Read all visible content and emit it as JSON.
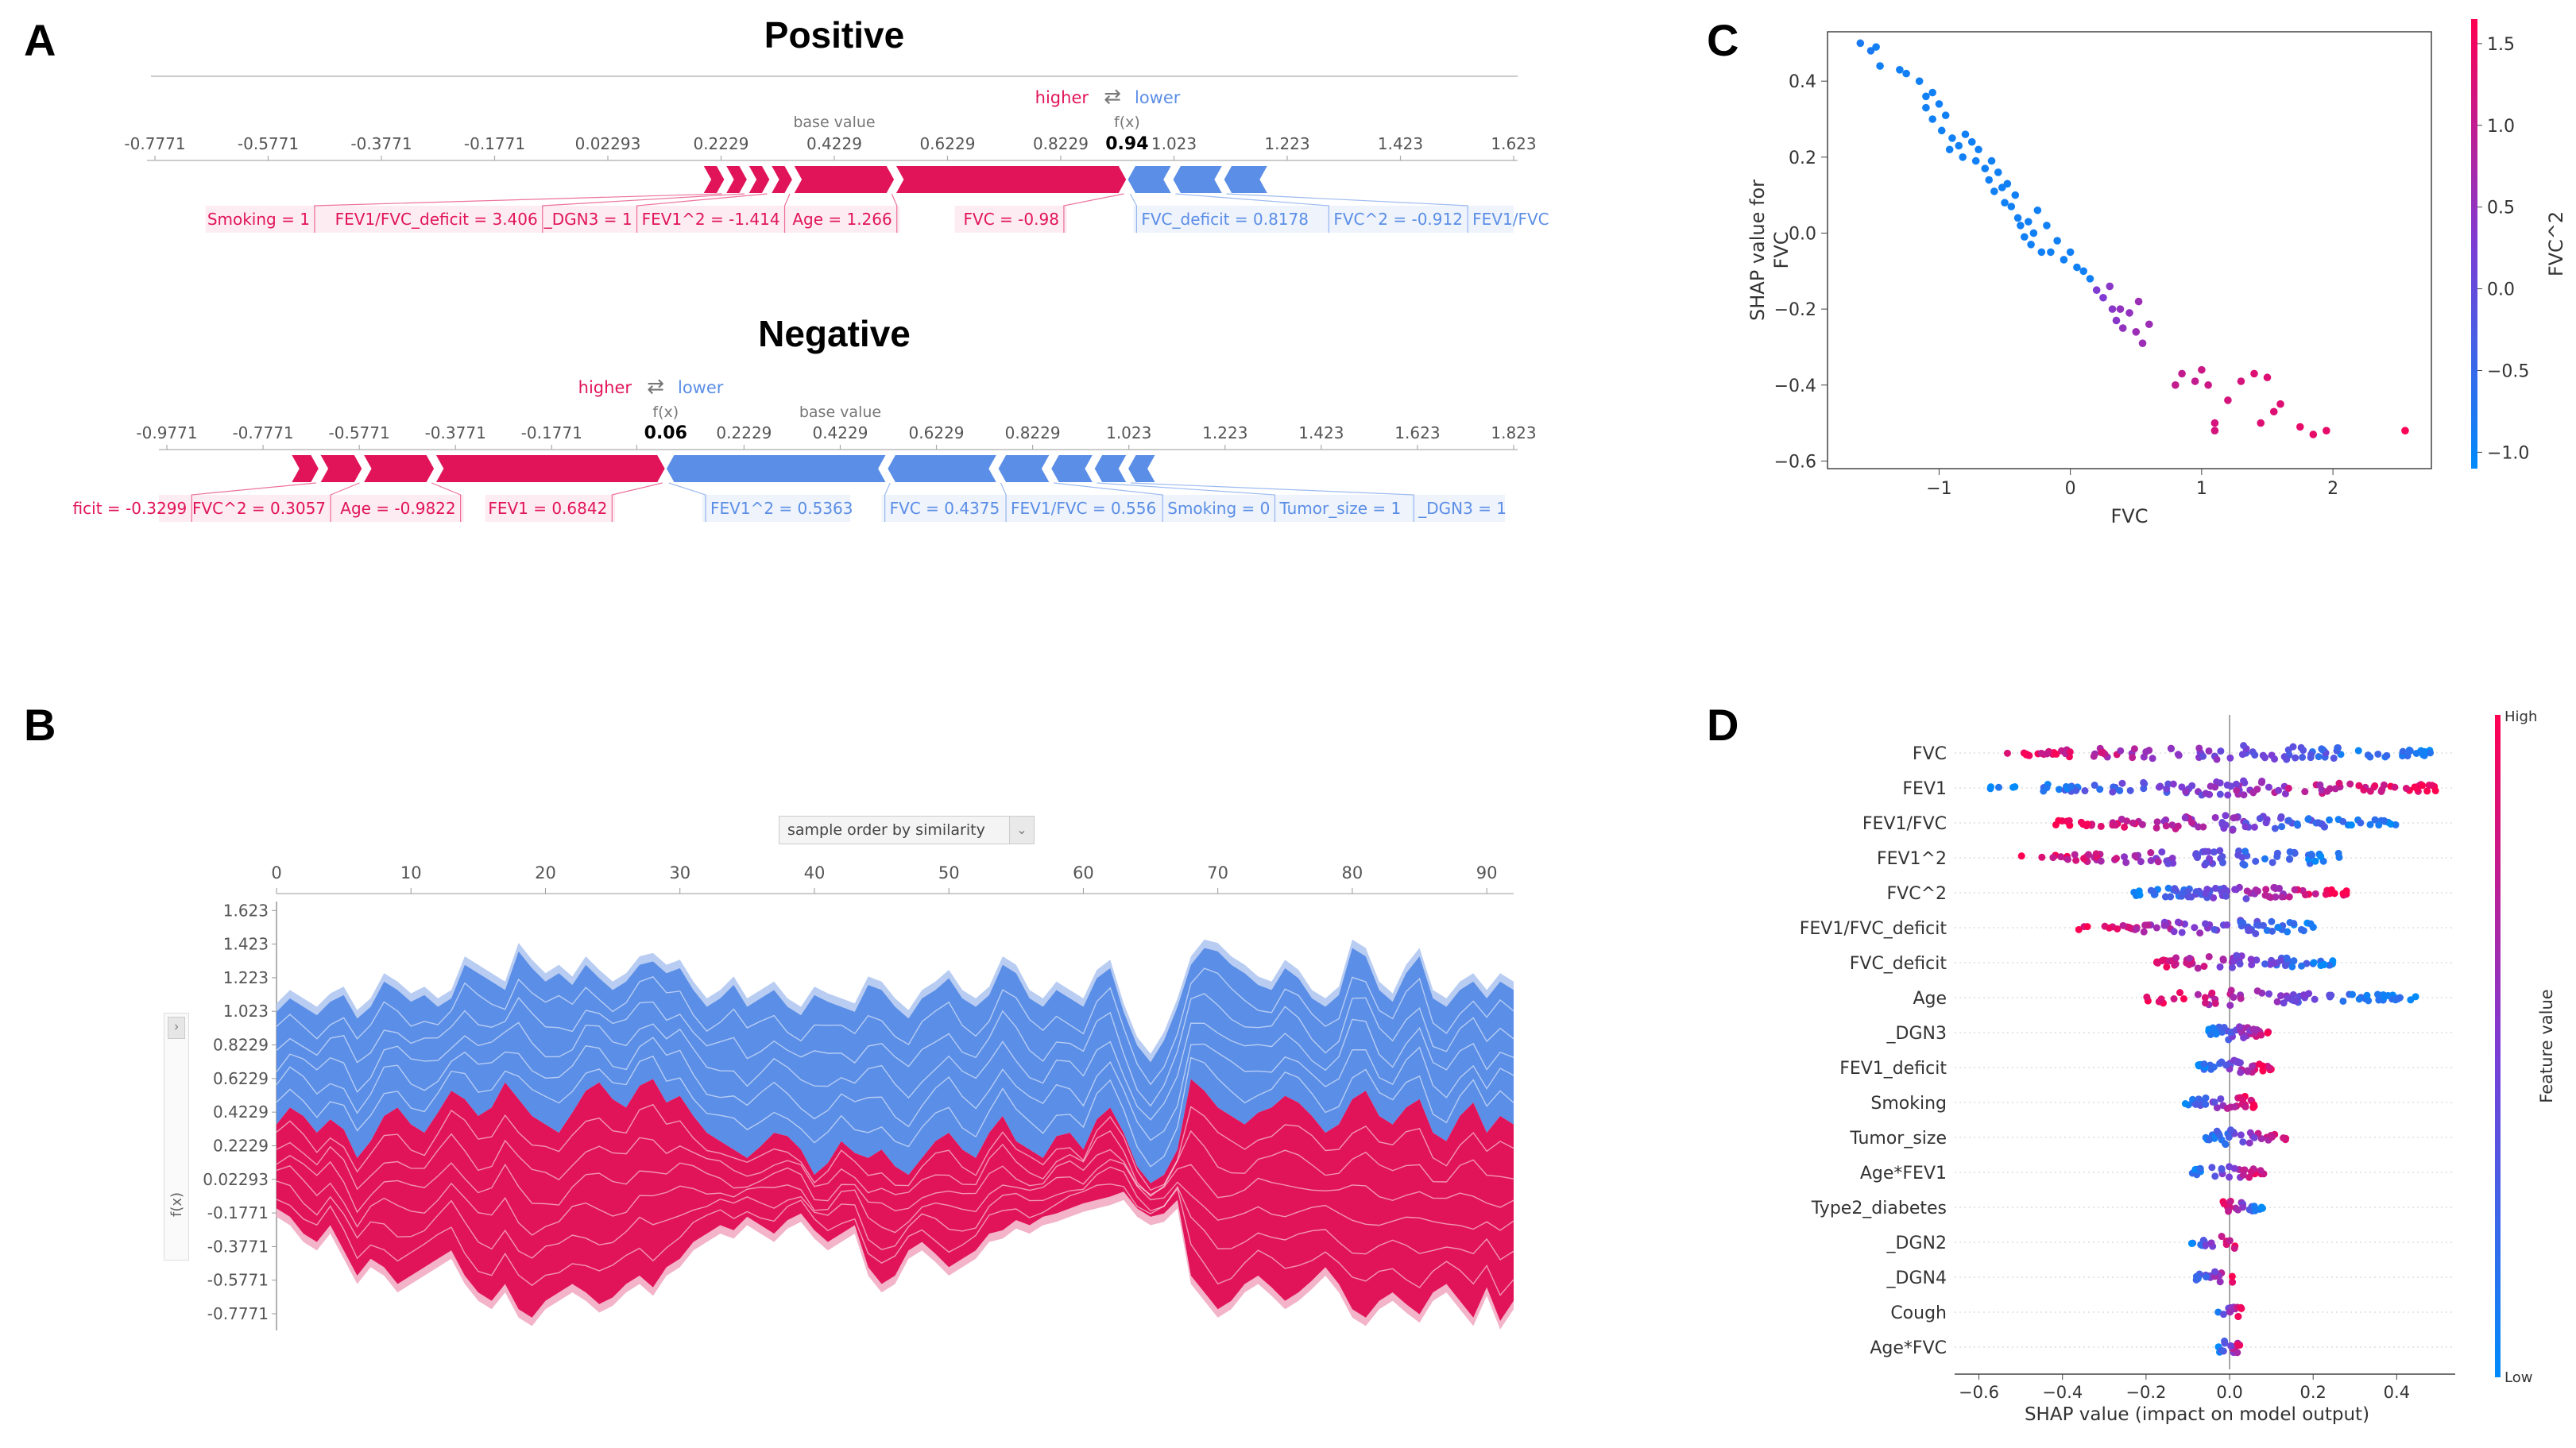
{
  "panel_labels": {
    "a": "A",
    "b": "B",
    "c": "C",
    "d": "D"
  },
  "colors": {
    "pos": "#ff0051",
    "pos_dark": "#e1145a",
    "neg": "#008bfb",
    "neg_soft": "#5b8ee6",
    "axis": "#555555"
  },
  "chart_data": [
    {
      "id": "A-positive",
      "type": "force-plot",
      "title": "Positive",
      "legend": {
        "higher": "higher",
        "lower": "lower",
        "arrows": "⇄"
      },
      "base_value_label": "base value",
      "fx_label": "f(x)",
      "fx_value": "0.94",
      "fx": 0.94,
      "base_value": 0.4229,
      "xlim": [
        -0.7771,
        1.623
      ],
      "ticks": [
        "-0.7771",
        "-0.5771",
        "-0.3771",
        "-0.1771",
        "0.02293",
        "0.2229",
        "0.4229",
        "0.6229",
        "0.8229",
        "1.023",
        "1.223",
        "1.423",
        "1.623"
      ],
      "tick_values": [
        -0.7771,
        -0.5771,
        -0.3771,
        -0.1771,
        0.02293,
        0.2229,
        0.4229,
        0.6229,
        0.8229,
        1.023,
        1.223,
        1.423,
        1.623
      ],
      "bar_start": 0.19,
      "bar_end": 1.19,
      "positive_features": [
        {
          "label": "Smoking = 1",
          "from": 0.19,
          "to": 0.23
        },
        {
          "label": "FEV1/FVC_deficit = 3.406",
          "from": 0.23,
          "to": 0.27
        },
        {
          "label": "_DGN3 = 1",
          "from": 0.27,
          "to": 0.31
        },
        {
          "label": "FEV1^2 = -1.414",
          "from": 0.31,
          "to": 0.35
        },
        {
          "label": "Age = 1.266",
          "from": 0.35,
          "to": 0.53
        },
        {
          "label": "FVC = -0.98",
          "from": 0.53,
          "to": 0.94
        }
      ],
      "negative_features": [
        {
          "label": "FVC_deficit = 0.8178",
          "from": 0.94,
          "to": 1.02
        },
        {
          "label": "FVC^2 = -0.912",
          "from": 1.02,
          "to": 1.11
        },
        {
          "label": "FEV1/FVC",
          "from": 1.11,
          "to": 1.19
        }
      ]
    },
    {
      "id": "A-negative",
      "type": "force-plot",
      "title": "Negative",
      "legend": {
        "higher": "higher",
        "lower": "lower",
        "arrows": "⇄"
      },
      "base_value_label": "base value",
      "fx_label": "f(x)",
      "fx_value": "0.06",
      "fx": 0.06,
      "base_value": 0.4229,
      "xlim": [
        -0.9771,
        1.823
      ],
      "ticks": [
        "-0.9771",
        "-0.7771",
        "-0.5771",
        "-0.3771",
        "-0.1771",
        "0.0",
        "0.2229",
        "0.4229",
        "0.6229",
        "0.8229",
        "1.023",
        "1.223",
        "1.423",
        "1.623",
        "1.823"
      ],
      "tick_values": [
        -0.9771,
        -0.7771,
        -0.5771,
        -0.3771,
        -0.1771,
        0.0,
        0.2229,
        0.4229,
        0.6229,
        0.8229,
        1.023,
        1.223,
        1.423,
        1.623,
        1.823
      ],
      "bar_start": -0.9,
      "bar_end": 1.08,
      "positive_features": [
        {
          "label": "ficit = -0.3299",
          "from": -0.72,
          "to": -0.66
        },
        {
          "label": "FVC^2 = 0.3057",
          "from": -0.66,
          "to": -0.57
        },
        {
          "label": "Age = -0.9822",
          "from": -0.57,
          "to": -0.42
        },
        {
          "label": "FEV1 = 0.6842",
          "from": -0.42,
          "to": 0.06
        }
      ],
      "negative_features": [
        {
          "label": "FEV1^2 = 0.5363",
          "from": 0.06,
          "to": 0.52
        },
        {
          "label": "FVC = 0.4375",
          "from": 0.52,
          "to": 0.75
        },
        {
          "label": "FEV1/FVC = 0.556",
          "from": 0.75,
          "to": 0.86
        },
        {
          "label": "Smoking = 0",
          "from": 0.86,
          "to": 0.95
        },
        {
          "label": "Tumor_size = 1",
          "from": 0.95,
          "to": 1.02
        },
        {
          "label": "_DGN3 = 1",
          "from": 1.02,
          "to": 1.08
        }
      ]
    },
    {
      "id": "B",
      "type": "area",
      "dropdown_label": "sample order by similarity",
      "ylabel": "f(x)",
      "x_ticks": [
        0,
        10,
        20,
        30,
        40,
        50,
        60,
        70,
        80,
        90
      ],
      "xlim": [
        0,
        92
      ],
      "y_ticks": [
        "1.623",
        "1.423",
        "1.223",
        "1.023",
        "0.8229",
        "0.6229",
        "0.4229",
        "0.2229",
        "0.02293",
        "-0.1771",
        "-0.3771",
        "-0.5771",
        "-0.7771"
      ],
      "y_tick_values": [
        1.623,
        1.423,
        1.223,
        1.023,
        0.8229,
        0.6229,
        0.4229,
        0.2229,
        0.02293,
        -0.1771,
        -0.3771,
        -0.5771,
        -0.7771
      ],
      "ylim": [
        -0.9,
        1.7
      ],
      "upper": [
        1.02,
        1.1,
        1.05,
        1.0,
        1.08,
        1.12,
        0.98,
        1.05,
        1.2,
        1.15,
        1.08,
        1.12,
        1.05,
        1.1,
        1.3,
        1.25,
        1.2,
        1.15,
        1.38,
        1.28,
        1.2,
        1.25,
        1.18,
        1.3,
        1.22,
        1.15,
        1.2,
        1.3,
        1.32,
        1.25,
        1.28,
        1.15,
        1.05,
        1.1,
        1.18,
        1.05,
        1.1,
        1.15,
        1.05,
        1.0,
        1.12,
        1.08,
        1.05,
        1.02,
        1.18,
        1.15,
        1.05,
        0.98,
        1.1,
        1.15,
        1.22,
        1.1,
        1.05,
        1.12,
        1.3,
        1.25,
        1.1,
        1.05,
        1.15,
        1.1,
        1.05,
        1.22,
        1.28,
        1.02,
        0.82,
        0.72,
        0.85,
        1.05,
        1.3,
        1.4,
        1.38,
        1.3,
        1.25,
        1.18,
        1.15,
        1.28,
        1.22,
        1.1,
        1.05,
        1.12,
        1.4,
        1.35,
        1.15,
        1.08,
        1.25,
        1.35,
        1.1,
        1.05,
        1.15,
        1.2,
        1.1,
        1.2,
        1.15
      ],
      "boundary": [
        0.35,
        0.45,
        0.4,
        0.3,
        0.38,
        0.32,
        0.15,
        0.25,
        0.4,
        0.45,
        0.35,
        0.3,
        0.42,
        0.55,
        0.5,
        0.4,
        0.45,
        0.6,
        0.5,
        0.4,
        0.35,
        0.3,
        0.42,
        0.55,
        0.6,
        0.5,
        0.45,
        0.58,
        0.62,
        0.48,
        0.52,
        0.4,
        0.3,
        0.25,
        0.2,
        0.15,
        0.22,
        0.3,
        0.28,
        0.2,
        0.05,
        0.12,
        0.25,
        0.18,
        0.15,
        0.2,
        0.1,
        0.05,
        0.15,
        0.25,
        0.3,
        0.2,
        0.15,
        0.3,
        0.4,
        0.25,
        0.2,
        0.15,
        0.28,
        0.3,
        0.2,
        0.38,
        0.45,
        0.3,
        0.1,
        0.0,
        0.05,
        0.2,
        0.62,
        0.55,
        0.45,
        0.4,
        0.35,
        0.42,
        0.45,
        0.52,
        0.48,
        0.4,
        0.3,
        0.35,
        0.5,
        0.55,
        0.4,
        0.35,
        0.45,
        0.5,
        0.3,
        0.25,
        0.4,
        0.48,
        0.3,
        0.4,
        0.35
      ],
      "lower": [
        -0.15,
        -0.2,
        -0.3,
        -0.35,
        -0.25,
        -0.4,
        -0.55,
        -0.45,
        -0.5,
        -0.6,
        -0.55,
        -0.5,
        -0.45,
        -0.4,
        -0.55,
        -0.65,
        -0.7,
        -0.6,
        -0.75,
        -0.8,
        -0.7,
        -0.65,
        -0.6,
        -0.65,
        -0.72,
        -0.68,
        -0.6,
        -0.55,
        -0.62,
        -0.5,
        -0.45,
        -0.35,
        -0.3,
        -0.25,
        -0.28,
        -0.2,
        -0.25,
        -0.3,
        -0.22,
        -0.18,
        -0.28,
        -0.35,
        -0.3,
        -0.25,
        -0.5,
        -0.6,
        -0.55,
        -0.4,
        -0.35,
        -0.42,
        -0.5,
        -0.45,
        -0.4,
        -0.3,
        -0.28,
        -0.22,
        -0.25,
        -0.2,
        -0.18,
        -0.15,
        -0.12,
        -0.1,
        -0.08,
        -0.05,
        -0.15,
        -0.2,
        -0.18,
        -0.1,
        -0.55,
        -0.65,
        -0.75,
        -0.7,
        -0.6,
        -0.55,
        -0.62,
        -0.7,
        -0.65,
        -0.58,
        -0.5,
        -0.6,
        -0.75,
        -0.8,
        -0.7,
        -0.65,
        -0.72,
        -0.78,
        -0.65,
        -0.6,
        -0.7,
        -0.8,
        -0.62,
        -0.82,
        -0.7
      ]
    },
    {
      "id": "C",
      "type": "scatter",
      "xlabel": "FVC",
      "ylabel": "SHAP value for\nFVC",
      "xlim": [
        -1.85,
        2.75
      ],
      "ylim": [
        -0.62,
        0.53
      ],
      "x_ticks": [
        -1,
        0,
        1,
        2
      ],
      "x_tick_labels": [
        "−1",
        "0",
        "1",
        "2"
      ],
      "y_ticks": [
        0.4,
        0.2,
        0.0,
        -0.2,
        -0.4,
        -0.6
      ],
      "y_tick_labels": [
        "0.4",
        "0.2",
        "0.0",
        "−0.2",
        "−0.4",
        "−0.6"
      ],
      "colorbar_label": "FVC^2",
      "colorbar_ticks": [
        1.5,
        1.0,
        0.5,
        0.0,
        -0.5,
        -1.0
      ],
      "colorbar_tick_labels": [
        "1.5",
        "1.0",
        "0.5",
        "0.0",
        "−0.5",
        "−1.0"
      ],
      "colorbar_range": [
        -1.1,
        1.65
      ],
      "points": [
        [
          -1.6,
          0.5,
          -0.8
        ],
        [
          -1.52,
          0.48,
          -0.8
        ],
        [
          -1.48,
          0.49,
          -0.9
        ],
        [
          -1.45,
          0.44,
          -0.9
        ],
        [
          -1.3,
          0.43,
          -0.9
        ],
        [
          -1.25,
          0.42,
          -0.9
        ],
        [
          -1.15,
          0.4,
          -0.9
        ],
        [
          -1.1,
          0.36,
          -0.9
        ],
        [
          -1.1,
          0.33,
          -0.9
        ],
        [
          -1.05,
          0.37,
          -0.9
        ],
        [
          -1.05,
          0.3,
          -0.9
        ],
        [
          -1.0,
          0.34,
          -0.9
        ],
        [
          -0.98,
          0.27,
          -0.9
        ],
        [
          -0.95,
          0.31,
          -0.9
        ],
        [
          -0.9,
          0.25,
          -0.9
        ],
        [
          -0.92,
          0.22,
          -0.9
        ],
        [
          -0.85,
          0.23,
          -0.9
        ],
        [
          -0.82,
          0.2,
          -0.9
        ],
        [
          -0.8,
          0.26,
          -0.9
        ],
        [
          -0.75,
          0.24,
          -0.9
        ],
        [
          -0.72,
          0.19,
          -0.9
        ],
        [
          -0.7,
          0.22,
          -0.9
        ],
        [
          -0.65,
          0.17,
          -0.9
        ],
        [
          -0.62,
          0.14,
          -0.9
        ],
        [
          -0.6,
          0.19,
          -0.9
        ],
        [
          -0.58,
          0.11,
          -0.9
        ],
        [
          -0.55,
          0.16,
          -0.9
        ],
        [
          -0.52,
          0.12,
          -0.9
        ],
        [
          -0.5,
          0.08,
          -0.9
        ],
        [
          -0.48,
          0.13,
          -0.9
        ],
        [
          -0.45,
          0.07,
          -0.9
        ],
        [
          -0.42,
          0.1,
          -0.9
        ],
        [
          -0.4,
          0.04,
          -0.9
        ],
        [
          -0.38,
          0.02,
          -0.9
        ],
        [
          -0.35,
          -0.01,
          -0.9
        ],
        [
          -0.32,
          0.03,
          -0.9
        ],
        [
          -0.3,
          -0.03,
          -0.9
        ],
        [
          -0.28,
          0.0,
          -0.9
        ],
        [
          -0.25,
          0.06,
          -0.9
        ],
        [
          -0.22,
          -0.05,
          -0.9
        ],
        [
          -0.18,
          0.02,
          -0.9
        ],
        [
          -0.15,
          -0.05,
          -0.9
        ],
        [
          -0.1,
          -0.02,
          -0.9
        ],
        [
          -0.05,
          -0.07,
          -0.9
        ],
        [
          0.0,
          -0.05,
          -0.9
        ],
        [
          0.05,
          -0.09,
          -0.9
        ],
        [
          0.1,
          -0.1,
          -0.9
        ],
        [
          0.15,
          -0.12,
          -0.9
        ],
        [
          0.2,
          -0.15,
          0.3
        ],
        [
          0.25,
          -0.17,
          0.3
        ],
        [
          0.3,
          -0.14,
          0.4
        ],
        [
          0.32,
          -0.2,
          0.4
        ],
        [
          0.35,
          -0.23,
          0.4
        ],
        [
          0.38,
          -0.2,
          0.5
        ],
        [
          0.4,
          -0.25,
          0.5
        ],
        [
          0.45,
          -0.21,
          0.5
        ],
        [
          0.5,
          -0.26,
          0.6
        ],
        [
          0.52,
          -0.18,
          0.6
        ],
        [
          0.55,
          -0.29,
          0.6
        ],
        [
          0.6,
          -0.24,
          0.6
        ],
        [
          0.8,
          -0.4,
          1.0
        ],
        [
          0.85,
          -0.37,
          1.0
        ],
        [
          0.95,
          -0.39,
          1.0
        ],
        [
          1.0,
          -0.36,
          1.1
        ],
        [
          1.05,
          -0.4,
          1.1
        ],
        [
          1.1,
          -0.52,
          1.2
        ],
        [
          1.1,
          -0.5,
          1.2
        ],
        [
          1.2,
          -0.44,
          1.2
        ],
        [
          1.3,
          -0.39,
          1.2
        ],
        [
          1.4,
          -0.37,
          1.3
        ],
        [
          1.45,
          -0.5,
          1.3
        ],
        [
          1.5,
          -0.38,
          1.3
        ],
        [
          1.55,
          -0.47,
          1.3
        ],
        [
          1.6,
          -0.45,
          1.3
        ],
        [
          1.75,
          -0.51,
          1.4
        ],
        [
          1.85,
          -0.53,
          1.4
        ],
        [
          1.95,
          -0.52,
          1.4
        ],
        [
          2.55,
          -0.52,
          1.6
        ]
      ]
    },
    {
      "id": "D",
      "type": "scatter",
      "xlabel": "SHAP value (impact on model output)",
      "xlim": [
        -0.62,
        0.54
      ],
      "x_ticks": [
        -0.6,
        -0.4,
        -0.2,
        0.0,
        0.2,
        0.4
      ],
      "x_tick_labels": [
        "−0.6",
        "−0.4",
        "−0.2",
        "0.0",
        "0.2",
        "0.4"
      ],
      "colorbar_label": "Feature value",
      "colorbar_high": "High",
      "colorbar_low": "Low",
      "features": [
        "FVC",
        "FEV1",
        "FEV1/FVC",
        "FEV1^2",
        "FVC^2",
        "FEV1/FVC_deficit",
        "FVC_deficit",
        "Age",
        "_DGN3",
        "FEV1_deficit",
        "Smoking",
        "Tumor_size",
        "Age*FEV1",
        "Type2_diabetes",
        "_DGN2",
        "_DGN4",
        "Cough",
        "Age*FVC"
      ],
      "feature_spread": [
        [
          -0.56,
          0.5,
          1
        ],
        [
          -0.58,
          0.5,
          0
        ],
        [
          -0.42,
          0.4,
          1
        ],
        [
          -0.5,
          0.28,
          1
        ],
        [
          -0.24,
          0.28,
          0
        ],
        [
          -0.38,
          0.22,
          1
        ],
        [
          -0.2,
          0.26,
          1
        ],
        [
          -0.2,
          0.45,
          1
        ],
        [
          -0.05,
          0.1,
          0
        ],
        [
          -0.08,
          0.1,
          0
        ],
        [
          -0.12,
          0.06,
          0
        ],
        [
          -0.06,
          0.14,
          0
        ],
        [
          -0.1,
          0.1,
          0
        ],
        [
          -0.02,
          0.08,
          1
        ],
        [
          -0.1,
          0.02,
          0
        ],
        [
          -0.1,
          0.02,
          0
        ],
        [
          -0.03,
          0.03,
          0
        ],
        [
          -0.03,
          0.03,
          0
        ]
      ],
      "feature_counts": [
        110,
        110,
        95,
        90,
        80,
        70,
        65,
        65,
        40,
        40,
        35,
        35,
        30,
        20,
        20,
        20,
        15,
        15
      ]
    }
  ]
}
